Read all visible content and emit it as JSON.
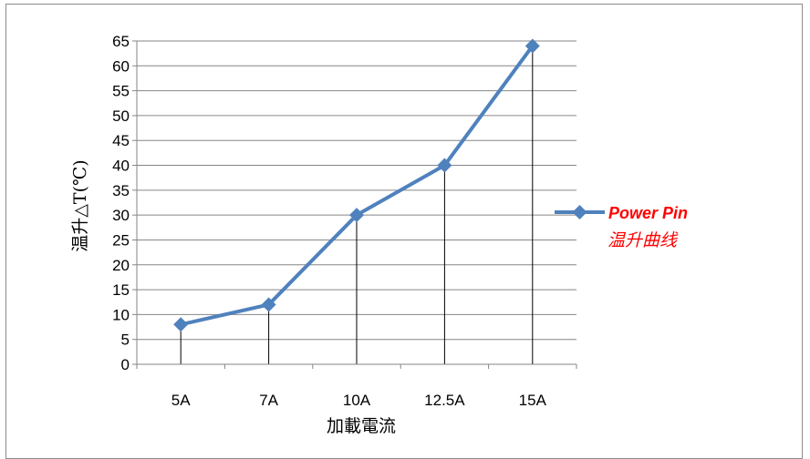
{
  "chart_data": {
    "type": "line",
    "categories": [
      "5A",
      "7A",
      "10A",
      "12.5A",
      "15A"
    ],
    "series": [
      {
        "name": "Power Pin",
        "name_line2": "温升曲线",
        "values": [
          8,
          12,
          30,
          40,
          64
        ]
      }
    ],
    "xlabel": "加載電流",
    "ylabel": "温升△T(℃)",
    "ylim": [
      0,
      65
    ],
    "ystep": 5,
    "yticks": [
      "0",
      "5",
      "10",
      "15",
      "20",
      "25",
      "30",
      "35",
      "40",
      "45",
      "50",
      "55",
      "60",
      "65"
    ],
    "grid": true,
    "drop_lines": true,
    "legend_position": "right",
    "colors": {
      "series": "#4f81bd",
      "legend_text": "#ff0000",
      "grid": "#868686"
    },
    "marker": "diamond"
  }
}
